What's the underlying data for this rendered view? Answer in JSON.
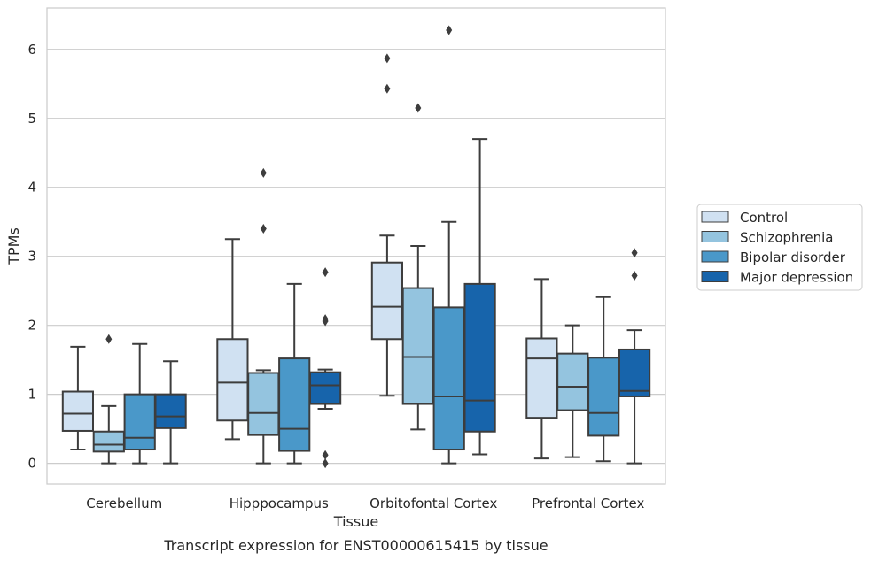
{
  "caption": "Transcript expression for ENST00000615415 by tissue",
  "chart_data": {
    "type": "box",
    "xlabel": "Tissue",
    "ylabel": "TPMs",
    "ylim": [
      -0.3,
      6.6
    ],
    "yticks": [
      0,
      1,
      2,
      3,
      4,
      5,
      6
    ],
    "grid": true,
    "legend_position": "right",
    "categories": [
      "Cerebellum",
      "Hipppocampus",
      "Orbitofontal Cortex",
      "Prefrontal Cortex"
    ],
    "series": [
      {
        "name": "Control",
        "color": "#d0e1f2",
        "boxes": [
          {
            "whisker_low": 0.2,
            "q1": 0.47,
            "median": 0.72,
            "q3": 1.04,
            "whisker_high": 1.69,
            "outliers": []
          },
          {
            "whisker_low": 0.35,
            "q1": 0.62,
            "median": 1.17,
            "q3": 1.8,
            "whisker_high": 3.25,
            "outliers": []
          },
          {
            "whisker_low": 0.98,
            "q1": 1.8,
            "median": 2.27,
            "q3": 2.91,
            "whisker_high": 3.3,
            "outliers": [
              5.43,
              5.87
            ]
          },
          {
            "whisker_low": 0.07,
            "q1": 0.66,
            "median": 1.52,
            "q3": 1.81,
            "whisker_high": 2.67,
            "outliers": []
          }
        ]
      },
      {
        "name": "Schizophrenia",
        "color": "#94c4df",
        "boxes": [
          {
            "whisker_low": 0.0,
            "q1": 0.17,
            "median": 0.27,
            "q3": 0.46,
            "whisker_high": 0.83,
            "outliers": [
              1.8
            ]
          },
          {
            "whisker_low": 0.0,
            "q1": 0.41,
            "median": 0.73,
            "q3": 1.31,
            "whisker_high": 1.35,
            "outliers": [
              3.4,
              4.21
            ]
          },
          {
            "whisker_low": 0.49,
            "q1": 0.86,
            "median": 1.54,
            "q3": 2.54,
            "whisker_high": 3.15,
            "outliers": [
              5.15
            ]
          },
          {
            "whisker_low": 0.09,
            "q1": 0.77,
            "median": 1.11,
            "q3": 1.59,
            "whisker_high": 2.0,
            "outliers": []
          }
        ]
      },
      {
        "name": "Bipolar disorder",
        "color": "#4a98c9",
        "boxes": [
          {
            "whisker_low": 0.0,
            "q1": 0.2,
            "median": 0.37,
            "q3": 1.0,
            "whisker_high": 1.73,
            "outliers": []
          },
          {
            "whisker_low": 0.0,
            "q1": 0.18,
            "median": 0.5,
            "q3": 1.52,
            "whisker_high": 2.6,
            "outliers": []
          },
          {
            "whisker_low": 0.0,
            "q1": 0.2,
            "median": 0.97,
            "q3": 2.26,
            "whisker_high": 3.5,
            "outliers": [
              6.28
            ]
          },
          {
            "whisker_low": 0.03,
            "q1": 0.4,
            "median": 0.73,
            "q3": 1.53,
            "whisker_high": 2.41,
            "outliers": []
          }
        ]
      },
      {
        "name": "Major depression",
        "color": "#1764ab",
        "boxes": [
          {
            "whisker_low": 0.0,
            "q1": 0.51,
            "median": 0.68,
            "q3": 1.0,
            "whisker_high": 1.48,
            "outliers": []
          },
          {
            "whisker_low": 0.79,
            "q1": 0.86,
            "median": 1.13,
            "q3": 1.32,
            "whisker_high": 1.36,
            "outliers": [
              0.0,
              0.12,
              2.06,
              2.09,
              2.77
            ]
          },
          {
            "whisker_low": 0.13,
            "q1": 0.46,
            "median": 0.91,
            "q3": 2.6,
            "whisker_high": 4.7,
            "outliers": []
          },
          {
            "whisker_low": 0.0,
            "q1": 0.97,
            "median": 1.05,
            "q3": 1.65,
            "whisker_high": 1.93,
            "outliers": [
              2.72,
              3.05
            ]
          }
        ]
      }
    ]
  }
}
